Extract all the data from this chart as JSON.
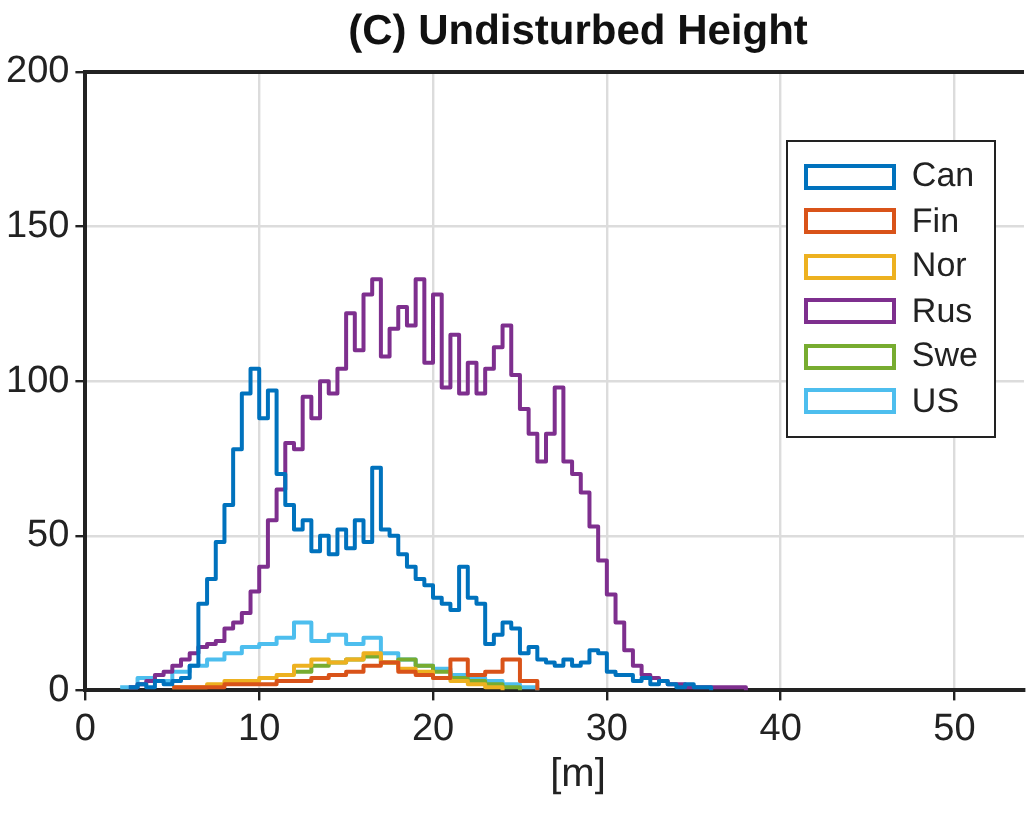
{
  "chart_data": {
    "type": "step",
    "title": "(C) Undisturbed Height",
    "xlabel": "[m]",
    "xlim": [
      0,
      54
    ],
    "xticks": [
      0,
      10,
      20,
      30,
      40,
      50
    ],
    "ylim": [
      0,
      200
    ],
    "yticks": [
      0,
      50,
      100,
      150,
      200
    ],
    "grid": true,
    "legend": "top right",
    "series": [
      {
        "name": "Can",
        "color": "#0072bd",
        "x": [
          2.5,
          3,
          3.5,
          4,
          4.5,
          5,
          5.5,
          6,
          6.5,
          7,
          7.5,
          8,
          8.5,
          9,
          9.5,
          10,
          10.5,
          11,
          11.5,
          12,
          12.5,
          13,
          13.5,
          14,
          14.5,
          15,
          15.5,
          16,
          16.5,
          17,
          17.5,
          18,
          18.5,
          19,
          19.5,
          20,
          20.5,
          21,
          21.5,
          22,
          22.5,
          23,
          23.5,
          24,
          24.5,
          25,
          25.5,
          26,
          26.5,
          27,
          27.5,
          28,
          28.5,
          29,
          29.5,
          30,
          30.5,
          31,
          31.5,
          32,
          32.5,
          33,
          33.5,
          34,
          34.5,
          35,
          35.5,
          36
        ],
        "values": [
          1,
          2,
          1,
          3,
          2,
          3,
          4,
          8,
          28,
          36,
          48,
          60,
          78,
          96,
          104,
          88,
          97,
          70,
          60,
          52,
          55,
          45,
          50,
          44,
          52,
          46,
          55,
          48,
          72,
          52,
          50,
          44,
          40,
          36,
          34,
          30,
          28,
          26,
          40,
          30,
          28,
          15,
          18,
          22,
          20,
          12,
          14,
          10,
          9,
          8,
          10,
          8,
          9,
          13,
          12,
          6,
          5,
          5,
          3,
          4,
          2,
          3,
          2,
          1,
          2,
          1,
          1,
          0
        ]
      },
      {
        "name": "Fin",
        "color": "#d95319",
        "x": [
          5,
          6,
          7,
          8,
          9,
          10,
          11,
          12,
          13,
          14,
          15,
          16,
          17,
          18,
          19,
          20,
          21,
          22,
          23,
          24,
          25,
          26
        ],
        "values": [
          1,
          1,
          1,
          2,
          2,
          2,
          3,
          3,
          4,
          5,
          6,
          8,
          9,
          6,
          5,
          4,
          10,
          5,
          6,
          10,
          3,
          0
        ]
      },
      {
        "name": "Nor",
        "color": "#edb120",
        "x": [
          5,
          6,
          7,
          8,
          9,
          10,
          11,
          12,
          13,
          14,
          15,
          16,
          17,
          18,
          19,
          20,
          21,
          22,
          23,
          24
        ],
        "values": [
          1,
          1,
          2,
          3,
          3,
          4,
          5,
          8,
          10,
          9,
          10,
          12,
          9,
          7,
          6,
          4,
          3,
          2,
          1,
          0
        ]
      },
      {
        "name": "Rus",
        "color": "#7e2f8e",
        "x": [
          2.5,
          3,
          3.5,
          4,
          4.5,
          5,
          5.5,
          6,
          6.5,
          7,
          7.5,
          8,
          8.5,
          9,
          9.5,
          10,
          10.5,
          11,
          11.5,
          12,
          12.5,
          13,
          13.5,
          14,
          14.5,
          15,
          15.5,
          16,
          16.5,
          17,
          17.5,
          18,
          18.5,
          19,
          19.5,
          20,
          20.5,
          21,
          21.5,
          22,
          22.5,
          23,
          23.5,
          24,
          24.5,
          25,
          25.5,
          26,
          26.5,
          27,
          27.5,
          28,
          28.5,
          29,
          29.5,
          30,
          30.5,
          31,
          31.5,
          32,
          32.5,
          33,
          33.5,
          34,
          34.5,
          35,
          35.5,
          36,
          36.5,
          37,
          37.5,
          38
        ],
        "values": [
          1,
          2,
          3,
          5,
          6,
          8,
          10,
          12,
          14,
          15,
          16,
          20,
          22,
          25,
          32,
          40,
          55,
          65,
          80,
          78,
          95,
          88,
          100,
          96,
          104,
          122,
          110,
          128,
          133,
          108,
          117,
          124,
          118,
          133,
          106,
          128,
          98,
          115,
          96,
          106,
          96,
          104,
          111,
          118,
          102,
          91,
          83,
          74,
          83,
          98,
          74,
          70,
          64,
          53,
          42,
          31,
          22,
          13,
          8,
          5,
          4,
          3,
          2,
          2,
          1,
          1,
          1,
          1,
          1,
          1,
          1,
          0
        ]
      },
      {
        "name": "Swe",
        "color": "#77ac30",
        "x": [
          12,
          13,
          14,
          15,
          16,
          17,
          18,
          19,
          20,
          21,
          22,
          23,
          24,
          25
        ],
        "values": [
          6,
          8,
          9,
          10,
          11,
          9,
          10,
          8,
          6,
          4,
          3,
          2,
          1,
          0
        ]
      },
      {
        "name": "US",
        "color": "#4dbeee",
        "x": [
          2,
          3,
          4,
          5,
          6,
          7,
          8,
          9,
          10,
          11,
          12,
          13,
          14,
          15,
          16,
          17,
          18,
          19,
          20,
          21,
          22,
          23,
          24,
          25,
          26
        ],
        "values": [
          1,
          4,
          3,
          6,
          8,
          10,
          12,
          14,
          15,
          17,
          22,
          16,
          18,
          15,
          17,
          12,
          10,
          8,
          7,
          5,
          4,
          3,
          2,
          1,
          0
        ]
      }
    ]
  }
}
